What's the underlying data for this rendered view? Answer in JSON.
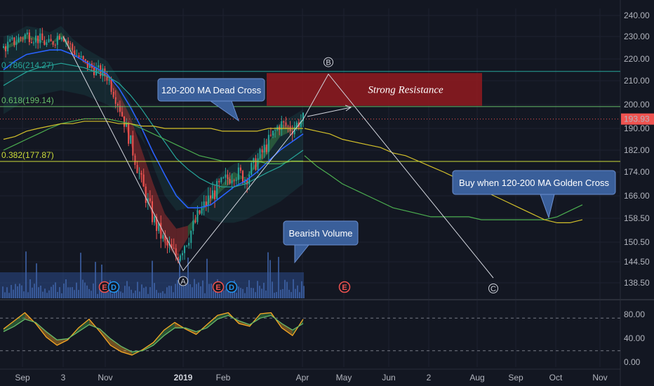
{
  "chart_data": {
    "type": "line",
    "price_axis": {
      "ticks": [
        "240.00",
        "230.00",
        "220.00",
        "210.00",
        "200.00",
        "190.00",
        "182.00",
        "174.00",
        "166.00",
        "158.50",
        "150.50",
        "144.50",
        "138.50"
      ],
      "ylim": [
        134,
        244
      ],
      "last_price": "193.93"
    },
    "oscillator_axis": {
      "ticks": [
        "80.00",
        "40.00",
        "0.00"
      ],
      "ylim": [
        -10,
        110
      ],
      "levels": [
        80,
        20
      ]
    },
    "x_ticks": [
      {
        "label": "Sep",
        "bold": false
      },
      {
        "label": "3",
        "bold": false
      },
      {
        "label": "Nov",
        "bold": false
      },
      {
        "label": "2019",
        "bold": true
      },
      {
        "label": "Feb",
        "bold": false
      },
      {
        "label": "Apr",
        "bold": false
      },
      {
        "label": "May",
        "bold": false
      },
      {
        "label": "Jun",
        "bold": false
      },
      {
        "label": "2",
        "bold": false
      },
      {
        "label": "Aug",
        "bold": false
      },
      {
        "label": "Sep",
        "bold": false
      },
      {
        "label": "Oct",
        "bold": false
      },
      {
        "label": "Nov",
        "bold": false
      }
    ],
    "fib_levels": [
      {
        "label": "0.786(214.27)",
        "value": 214.27,
        "color": "#26a69a"
      },
      {
        "label": "0.618(199.14)",
        "value": 199.14,
        "color": "#66bb6a"
      },
      {
        "label": "0.382(177.87)",
        "value": 177.87,
        "color": "#cddc39"
      }
    ],
    "resistance_zone": {
      "label": "Strong Resistance",
      "top": 213.5,
      "bottom": 199.5
    },
    "wave_points": [
      {
        "label": "A",
        "value": 142.0
      },
      {
        "label": "B",
        "value": 214.0
      },
      {
        "label": "C",
        "value": 139.5
      }
    ],
    "annotations": [
      "120-200 MA Dead Cross",
      "Bearish Volume",
      "Buy when 120-200 MA Golden Cross"
    ],
    "event_markers": [
      {
        "label": "E",
        "color": "#ef5350"
      },
      {
        "label": "D",
        "color": "#2196f3"
      },
      {
        "label": "E",
        "color": "#ef5350"
      },
      {
        "label": "D",
        "color": "#2196f3"
      },
      {
        "label": "E",
        "color": "#ef5350"
      }
    ],
    "series": [
      {
        "values": [
          225,
          228,
          231,
          229,
          226,
          232,
          224,
          218,
          215,
          212,
          200,
          185,
          170,
          158,
          150,
          146,
          152,
          160,
          166,
          170,
          174,
          172,
          178,
          185,
          192,
          190,
          194
        ]
      },
      {
        "values": [
          224,
          226,
          229,
          228,
          226,
          229,
          223,
          219,
          216,
          213,
          205,
          195,
          182,
          170,
          160,
          155,
          156,
          160,
          164,
          168,
          171,
          172,
          176,
          181,
          187,
          189,
          192
        ]
      },
      {
        "values": [
          215,
          219,
          222,
          223,
          224,
          224,
          222,
          219,
          216,
          213,
          207,
          199,
          190,
          181,
          173,
          166,
          162,
          162,
          163,
          166,
          169,
          171,
          174,
          178,
          182,
          185,
          188
        ]
      },
      {
        "values": [
          208,
          211,
          214,
          216,
          217,
          218,
          217,
          216,
          214,
          212,
          209,
          204,
          198,
          191,
          185,
          179,
          175,
          172,
          170,
          169,
          169,
          170,
          172,
          174,
          176,
          179,
          182
        ]
      },
      {
        "values": [
          182,
          184,
          186,
          188,
          190,
          192,
          193,
          194,
          194,
          194,
          193,
          192,
          190,
          188,
          186,
          184,
          182,
          180,
          179,
          178,
          178,
          178,
          178,
          177,
          177,
          178,
          178
        ]
      },
      {
        "values": [
          186,
          187,
          189,
          190,
          191,
          192,
          192,
          193,
          193,
          193,
          192,
          192,
          191,
          191,
          190,
          190,
          190,
          190,
          190,
          189,
          189,
          189,
          189,
          190,
          190,
          190,
          190
        ]
      },
      {
        "values": [
          180,
          176,
          173,
          170,
          168,
          166,
          164,
          162,
          161,
          160,
          159,
          159,
          159,
          159,
          158,
          158,
          158,
          158,
          158,
          158,
          159,
          161,
          163
        ]
      },
      {
        "values": [
          190,
          189,
          188,
          186,
          185,
          184,
          183,
          181,
          180,
          178,
          176,
          174,
          172,
          170,
          168,
          166,
          164,
          162,
          160,
          158,
          157,
          157,
          158
        ]
      },
      {
        "values": [
          60,
          75,
          90,
          70,
          45,
          30,
          40,
          62,
          78,
          55,
          30,
          18,
          12,
          22,
          35,
          58,
          72,
          60,
          50,
          68,
          85,
          90,
          70,
          65,
          88,
          90,
          62,
          48,
          78
        ]
      },
      {
        "values": [
          55,
          65,
          78,
          72,
          55,
          40,
          42,
          55,
          68,
          60,
          42,
          28,
          18,
          20,
          30,
          48,
          62,
          62,
          55,
          62,
          78,
          85,
          75,
          68,
          80,
          85,
          70,
          58,
          70
        ]
      }
    ]
  }
}
